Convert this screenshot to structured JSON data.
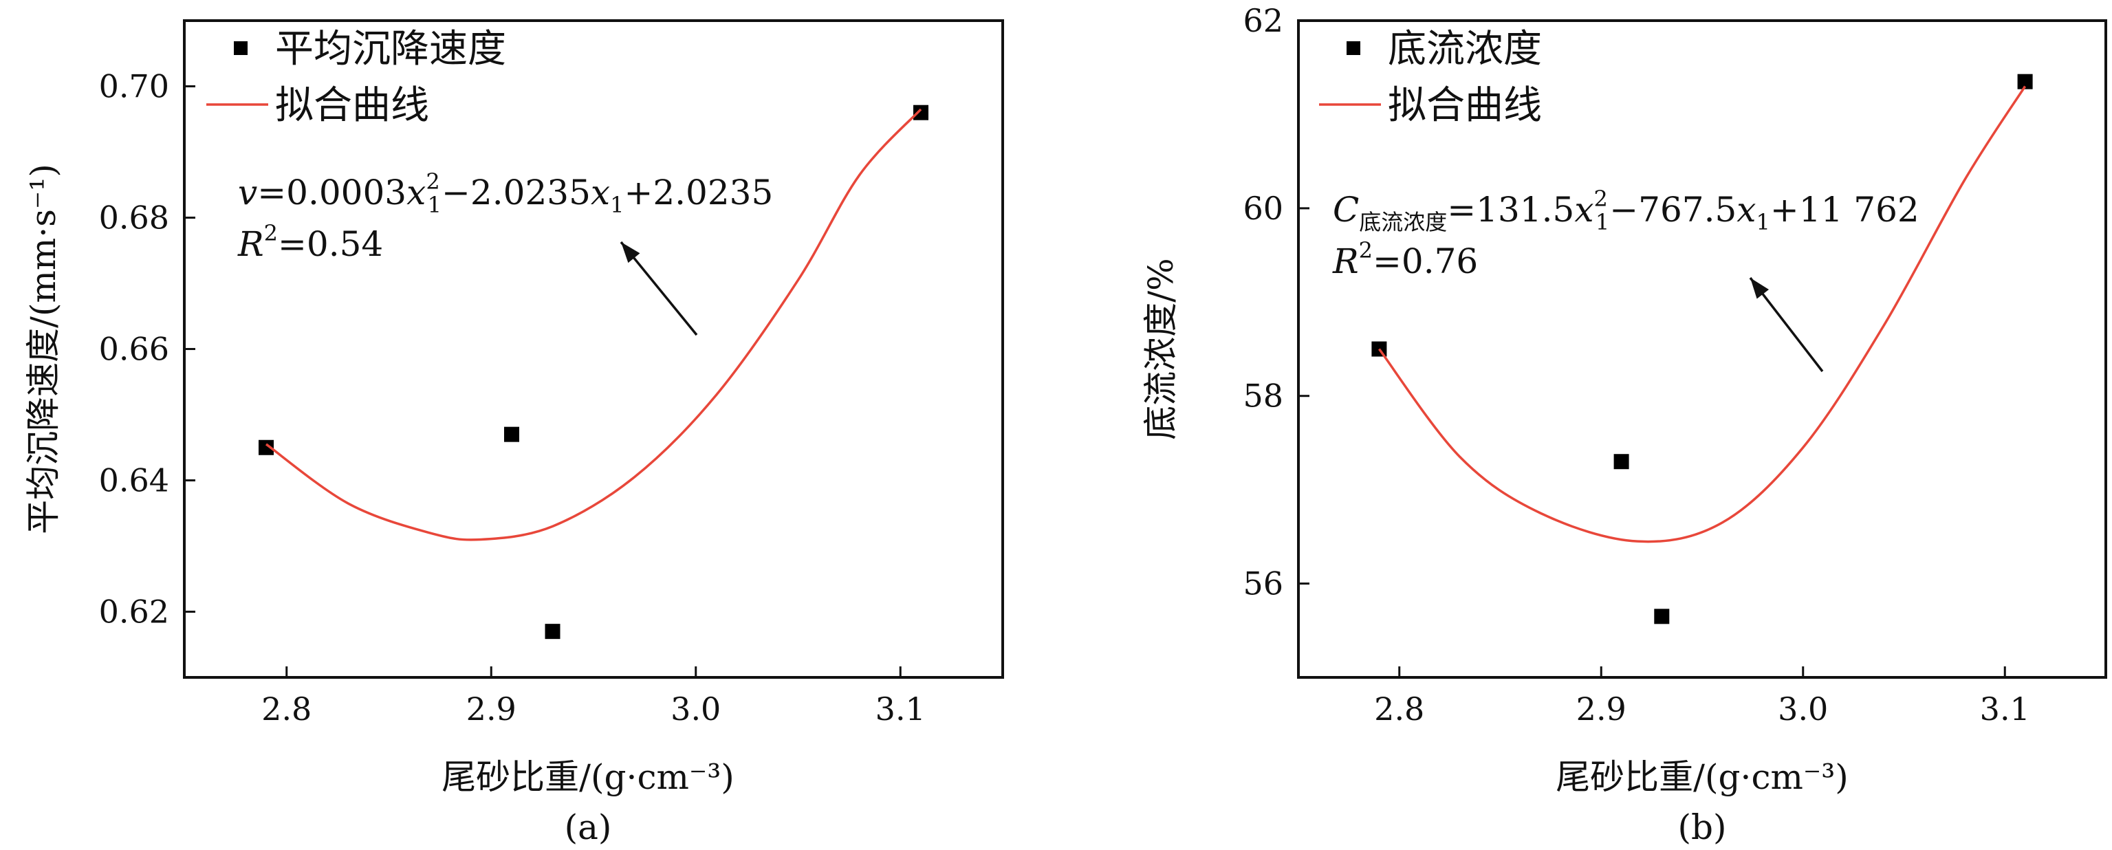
{
  "chart_data": [
    {
      "panel_label": "(a)",
      "type": "scatter",
      "xlabel": "尾砂比重/(g·cm⁻³)",
      "ylabel": "平均沉降速度/(mm·s⁻¹)",
      "xlim": [
        2.75,
        3.15
      ],
      "ylim": [
        0.61,
        0.71
      ],
      "xticks": [
        "2.8",
        "2.9",
        "3.0",
        "3.1"
      ],
      "yticks": [
        "0.62",
        "0.64",
        "0.66",
        "0.68",
        "0.70"
      ],
      "series": [
        {
          "name": "平均沉降速度",
          "kind": "scatter",
          "marker": "square",
          "color": "#000000",
          "x": [
            2.79,
            2.91,
            2.93,
            3.11
          ],
          "y": [
            0.645,
            0.647,
            0.617,
            0.696
          ]
        },
        {
          "name": "拟合曲线",
          "kind": "line",
          "color": "#e8473a",
          "x": [
            2.79,
            2.83,
            2.87,
            2.895,
            2.93,
            2.97,
            3.01,
            3.05,
            3.08,
            3.11
          ],
          "y": [
            0.6455,
            0.6365,
            0.632,
            0.631,
            0.633,
            0.6405,
            0.653,
            0.6705,
            0.6865,
            0.6965
          ]
        }
      ],
      "equation": {
        "lhs": "v",
        "rhs": "=0.0003",
        "x1": "x",
        "sub": "1",
        "sup": "2",
        "mid": "−2.0235",
        "tail": "+2.0235",
        "r_label": "R",
        "r_value": "=0.54"
      }
    },
    {
      "panel_label": "(b)",
      "type": "scatter",
      "xlabel": "尾砂比重/(g·cm⁻³)",
      "ylabel": "底流浓度/%",
      "xlim": [
        2.75,
        3.15
      ],
      "ylim": [
        55,
        62
      ],
      "xticks": [
        "2.8",
        "2.9",
        "3.0",
        "3.1"
      ],
      "yticks": [
        "56",
        "58",
        "60",
        "62"
      ],
      "series": [
        {
          "name": "底流浓度",
          "kind": "scatter",
          "marker": "square",
          "color": "#000000",
          "x": [
            2.79,
            2.91,
            2.93,
            3.11
          ],
          "y": [
            58.5,
            57.3,
            55.65,
            61.35
          ]
        },
        {
          "name": "拟合曲线",
          "kind": "line",
          "color": "#e8473a",
          "x": [
            2.79,
            2.83,
            2.87,
            2.918,
            2.96,
            3.0,
            3.04,
            3.08,
            3.11
          ],
          "y": [
            58.5,
            57.35,
            56.75,
            56.45,
            56.65,
            57.45,
            58.75,
            60.3,
            61.3
          ]
        }
      ],
      "equation": {
        "lhs": "C",
        "lhs_sub": "底流浓度",
        "rhs": "=131.5",
        "x1": "x",
        "sub": "1",
        "sup": "2",
        "mid": "−767.5",
        "tail": "+11 762",
        "r_label": "R",
        "r_value": "=0.76"
      }
    }
  ]
}
